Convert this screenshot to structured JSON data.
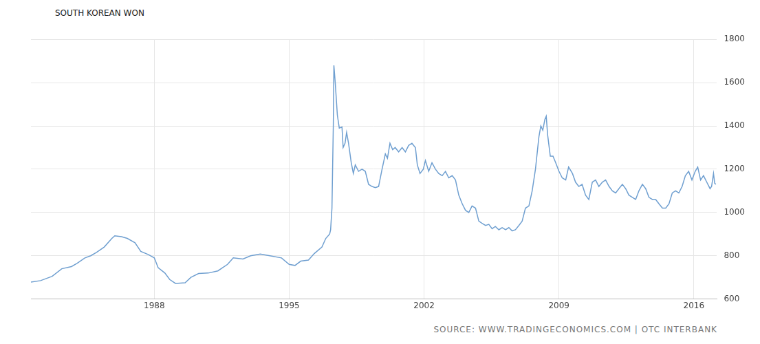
{
  "chart_data": {
    "type": "line",
    "title": "SOUTH KOREAN WON",
    "annotations": [
      "SOURCE: WWW.TRADINGECONOMICS.COM | OTC INTERBANK"
    ],
    "color": "#6f9fd0",
    "grid": true,
    "xlim": [
      1981.6,
      2017.2
    ],
    "xticks": [
      1988,
      1995,
      2002,
      2009,
      2016
    ],
    "ylim": [
      600,
      1800
    ],
    "yticks": [
      600,
      800,
      1000,
      1200,
      1400,
      1600,
      1800
    ],
    "x": [
      1981.6,
      1982.1,
      1982.7,
      1983.2,
      1983.7,
      1984.0,
      1984.4,
      1984.7,
      1985.0,
      1985.4,
      1985.8,
      1985.95,
      1986.3,
      1986.6,
      1987.0,
      1987.3,
      1987.7,
      1988.0,
      1988.2,
      1988.55,
      1988.8,
      1989.1,
      1989.6,
      1989.9,
      1990.3,
      1990.8,
      1991.3,
      1991.8,
      1992.1,
      1992.6,
      1993.0,
      1993.5,
      1994.0,
      1994.6,
      1995.0,
      1995.3,
      1995.6,
      1996.0,
      1996.3,
      1996.7,
      1996.9,
      1997.1,
      1997.15,
      1997.22,
      1997.29,
      1997.32,
      1997.39,
      1997.5,
      1997.6,
      1997.74,
      1997.8,
      1997.9,
      1997.98,
      1998.08,
      1998.22,
      1998.33,
      1998.43,
      1998.6,
      1998.78,
      1998.95,
      1999.12,
      1999.3,
      1999.47,
      1999.64,
      1999.82,
      1999.99,
      2000.1,
      2000.23,
      2000.37,
      2000.5,
      2000.68,
      2000.86,
      2001.03,
      2001.2,
      2001.37,
      2001.55,
      2001.65,
      2001.79,
      2001.96,
      2002.07,
      2002.24,
      2002.41,
      2002.59,
      2002.76,
      2002.94,
      2003.11,
      2003.28,
      2003.46,
      2003.63,
      2003.8,
      2003.98,
      2004.15,
      2004.32,
      2004.49,
      2004.67,
      2004.84,
      2005.01,
      2005.19,
      2005.36,
      2005.53,
      2005.7,
      2005.88,
      2006.05,
      2006.23,
      2006.4,
      2006.57,
      2006.74,
      2006.92,
      2007.09,
      2007.26,
      2007.44,
      2007.61,
      2007.78,
      2007.96,
      2008.06,
      2008.16,
      2008.27,
      2008.34,
      2008.41,
      2008.55,
      2008.69,
      2008.83,
      2009.0,
      2009.17,
      2009.35,
      2009.5,
      2009.7,
      2009.86,
      2010.03,
      2010.2,
      2010.38,
      2010.55,
      2010.73,
      2010.9,
      2011.07,
      2011.25,
      2011.42,
      2011.6,
      2011.77,
      2011.94,
      2012.11,
      2012.29,
      2012.46,
      2012.63,
      2012.81,
      2012.98,
      2013.15,
      2013.33,
      2013.5,
      2013.67,
      2013.85,
      2014.02,
      2014.19,
      2014.37,
      2014.54,
      2014.71,
      2014.88,
      2015.05,
      2015.22,
      2015.39,
      2015.56,
      2015.73,
      2015.9,
      2016.07,
      2016.2,
      2016.35,
      2016.5,
      2016.67,
      2016.84,
      2016.92,
      2017.02,
      2017.08,
      2017.14
    ],
    "values": [
      678,
      685,
      705,
      740,
      750,
      765,
      790,
      800,
      815,
      840,
      880,
      892,
      888,
      880,
      860,
      820,
      805,
      790,
      745,
      720,
      690,
      672,
      675,
      700,
      718,
      720,
      730,
      760,
      790,
      785,
      800,
      808,
      800,
      790,
      760,
      755,
      775,
      780,
      810,
      840,
      880,
      900,
      920,
      1020,
      1400,
      1680,
      1600,
      1450,
      1390,
      1395,
      1300,
      1320,
      1370,
      1320,
      1230,
      1180,
      1220,
      1190,
      1200,
      1190,
      1130,
      1120,
      1115,
      1120,
      1200,
      1270,
      1250,
      1320,
      1290,
      1300,
      1280,
      1300,
      1280,
      1310,
      1320,
      1300,
      1220,
      1180,
      1200,
      1240,
      1190,
      1230,
      1200,
      1180,
      1170,
      1190,
      1160,
      1170,
      1150,
      1080,
      1040,
      1010,
      1000,
      1030,
      1020,
      960,
      950,
      940,
      945,
      925,
      935,
      920,
      930,
      920,
      930,
      915,
      920,
      940,
      960,
      1020,
      1030,
      1100,
      1200,
      1350,
      1400,
      1380,
      1430,
      1445,
      1360,
      1260,
      1260,
      1230,
      1190,
      1160,
      1150,
      1210,
      1180,
      1140,
      1120,
      1130,
      1080,
      1060,
      1140,
      1150,
      1120,
      1140,
      1150,
      1120,
      1100,
      1090,
      1110,
      1130,
      1110,
      1080,
      1070,
      1060,
      1100,
      1130,
      1110,
      1070,
      1060,
      1060,
      1040,
      1020,
      1020,
      1040,
      1090,
      1100,
      1090,
      1120,
      1170,
      1190,
      1150,
      1190,
      1210,
      1150,
      1170,
      1140,
      1110,
      1120,
      1180,
      1135,
      1130
    ]
  }
}
